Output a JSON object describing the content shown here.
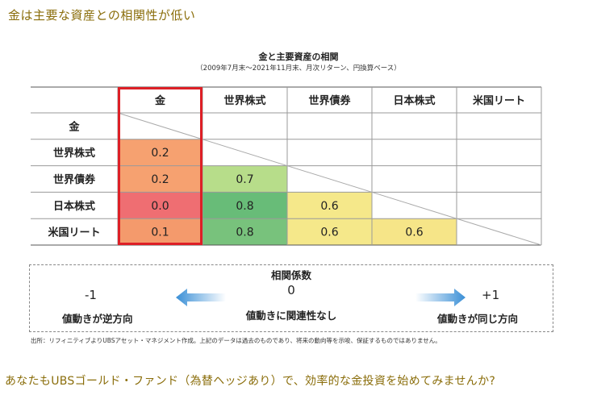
{
  "headline": "金は主要な資産との相関性が低い",
  "chart_data": {
    "type": "table",
    "title": "金と主要資産の相関",
    "subtitle": "（2009年7月末～2021年11月末、月次リターン、円換算ベース）",
    "columns": [
      "金",
      "世界株式",
      "世界債券",
      "日本株式",
      "米国リート"
    ],
    "rows": [
      "金",
      "世界株式",
      "世界債券",
      "日本株式",
      "米国リート"
    ],
    "values": [
      [
        null,
        null,
        null,
        null,
        null
      ],
      [
        "0.2",
        null,
        null,
        null,
        null
      ],
      [
        "0.2",
        "0.7",
        null,
        null,
        null
      ],
      [
        "0.0",
        "0.8",
        "0.6",
        null,
        null
      ],
      [
        "0.1",
        "0.8",
        "0.6",
        "0.6",
        null
      ]
    ],
    "cell_colors": [
      [
        null,
        null,
        null,
        null,
        null
      ],
      [
        "#f6a170",
        null,
        null,
        null,
        null
      ],
      [
        "#f6a170",
        "#b7dd8a",
        null,
        null,
        null
      ],
      [
        "#ef6e72",
        "#68bc78",
        "#f5e88a",
        null,
        null
      ],
      [
        "#f49a6c",
        "#78c27c",
        "#f5e88a",
        "#f6e588",
        null
      ]
    ],
    "highlight_column": "金",
    "highlight_color": "#dd1f26"
  },
  "legend": {
    "title": "相関係数",
    "zero": "0",
    "zero_desc": "値動きに関連性なし",
    "neg": "-1",
    "neg_desc": "値動きが逆方向",
    "pos": "+1",
    "pos_desc": "値動きが同じ方向"
  },
  "source": "出所：リフィニティブよりUBSアセット・マネジメント作成。上記のデータは過去のものであり、将来の動向等を示唆、保証するものではありません。",
  "cta": "あなたもUBSゴールド・ファンド（為替ヘッジあり）で、効率的な金投資を始めてみませんか?"
}
